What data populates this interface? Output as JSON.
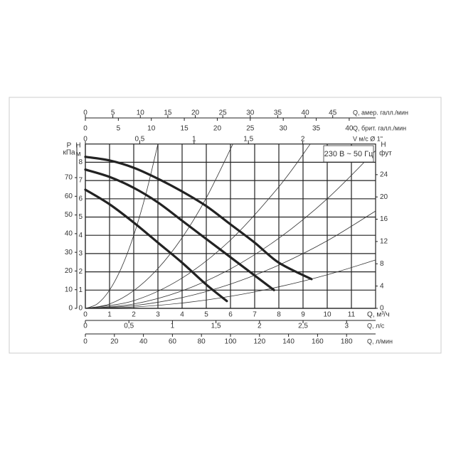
{
  "chart_data": {
    "type": "line",
    "xlabel": "Q, м³/ч",
    "xlim": [
      0,
      12
    ],
    "xticks": [
      0,
      1,
      2,
      3,
      4,
      5,
      6,
      7,
      8,
      9,
      10,
      11
    ],
    "ylabel": "H",
    "yunit": "м",
    "ylim": [
      0,
      9
    ],
    "yticks": [
      0,
      1,
      2,
      3,
      4,
      5,
      6,
      7,
      8
    ],
    "grid": true,
    "annotation": "230 В ~ 50 Гц",
    "p_axis": {
      "label": "P",
      "unit": "кПа",
      "ylim": [
        0,
        88
      ],
      "yticks": [
        0,
        10,
        20,
        30,
        40,
        50,
        60,
        70
      ]
    },
    "ft_axis": {
      "label": "H",
      "unit": "фут",
      "ylim": [
        0,
        29.5
      ],
      "yticks": [
        0,
        4,
        8,
        12,
        16,
        20,
        24
      ]
    },
    "top_axes": [
      {
        "label": "Q, амер. галл./мин",
        "xlim": [
          0,
          52.8
        ],
        "xticks": [
          0,
          5,
          10,
          15,
          20,
          25,
          30,
          35,
          40,
          45
        ]
      },
      {
        "label": "Q, брит. галл./мин",
        "xlim": [
          0,
          44
        ],
        "xticks": [
          0,
          5,
          10,
          15,
          20,
          25,
          30,
          35,
          40
        ]
      },
      {
        "label": "V м/с Ø 1\"",
        "xlim": [
          0,
          2.67
        ],
        "xticks": [
          0,
          {
            "value": 0.5,
            "label": "0,5"
          },
          1,
          {
            "value": 1.5,
            "label": "1,5"
          },
          2
        ]
      }
    ],
    "bottom_axes": [
      {
        "label": "Q, л/с",
        "xlim": [
          0,
          3.333
        ],
        "xticks": [
          0,
          {
            "value": 0.5,
            "label": "0,5"
          },
          1,
          {
            "value": 1.5,
            "label": "1,5"
          },
          2,
          {
            "value": 2.5,
            "label": "2,5"
          },
          3
        ]
      },
      {
        "label": "Q, л/мин",
        "xlim": [
          0,
          200
        ],
        "xticks": [
          0,
          20,
          40,
          60,
          80,
          100,
          120,
          140,
          160,
          180
        ]
      }
    ],
    "series": [
      {
        "color": "#222222",
        "x": [
          0,
          1,
          2,
          3,
          4,
          5,
          6,
          7,
          8,
          9.35
        ],
        "values": [
          8.3,
          8.1,
          7.7,
          7.1,
          6.4,
          5.6,
          4.6,
          3.6,
          2.5,
          1.6
        ]
      },
      {
        "color": "#222222",
        "x": [
          0,
          1,
          2,
          3,
          4,
          5,
          6,
          7,
          7.8
        ],
        "values": [
          7.6,
          7.2,
          6.6,
          5.8,
          4.8,
          3.8,
          2.8,
          1.8,
          1.0
        ]
      },
      {
        "color": "#222222",
        "x": [
          0,
          1,
          2,
          3,
          4,
          5,
          5.85
        ],
        "values": [
          6.5,
          5.7,
          4.7,
          3.6,
          2.5,
          1.3,
          0.4
        ]
      }
    ],
    "system_curves": [
      {
        "color": "#333333",
        "x": [
          0,
          0.5,
          1,
          1.5,
          2,
          2.5,
          3
        ],
        "values": [
          0,
          0.25,
          1,
          2.25,
          4,
          6.25,
          9
        ]
      },
      {
        "color": "#333333",
        "x": [
          0,
          1,
          2,
          3,
          4,
          5,
          6.1
        ],
        "values": [
          0,
          0.24,
          0.97,
          2.18,
          3.87,
          6.05,
          9
        ]
      },
      {
        "color": "#333333",
        "x": [
          0,
          2,
          4,
          6,
          8,
          9.3
        ],
        "values": [
          0,
          0.42,
          1.66,
          3.74,
          6.66,
          9
        ]
      },
      {
        "color": "#333333",
        "x": [
          0,
          2,
          4,
          6,
          8,
          10,
          12
        ],
        "values": [
          0,
          0.24,
          0.96,
          2.16,
          3.84,
          6,
          8.64
        ]
      },
      {
        "color": "#333333",
        "x": [
          0,
          2,
          4,
          6,
          8,
          10,
          12
        ],
        "values": [
          0,
          0.15,
          0.59,
          1.33,
          2.37,
          3.7,
          5.33
        ]
      },
      {
        "color": "#333333",
        "x": [
          0,
          2,
          4,
          6,
          8,
          10,
          12
        ],
        "values": [
          0,
          0.07,
          0.29,
          0.66,
          1.18,
          1.84,
          2.65
        ]
      }
    ]
  }
}
